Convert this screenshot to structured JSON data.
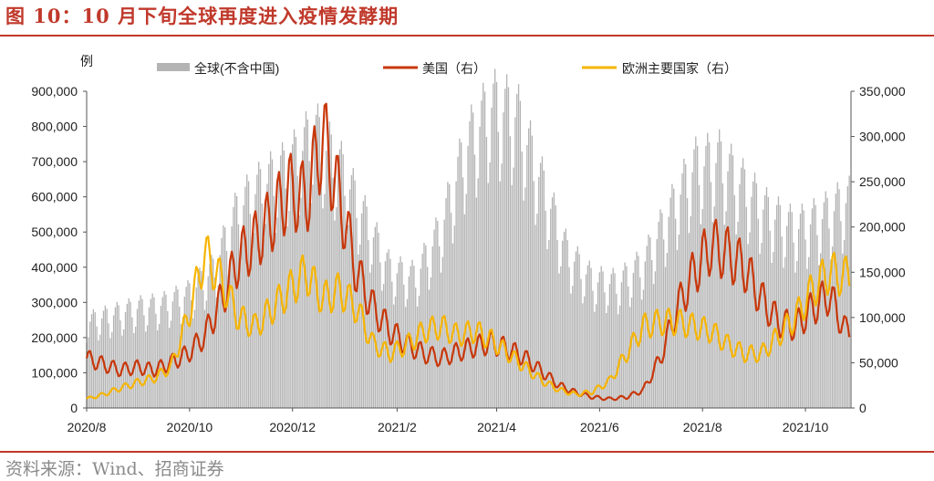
{
  "header": {
    "title": "图 10：10 月下旬全球再度进入疫情发酵期"
  },
  "footer": {
    "source": "资料来源：Wind、招商证券"
  },
  "chart_data": {
    "type": "bar",
    "left_axis_label": "例",
    "left_axis": {
      "ylim": [
        0,
        900000
      ],
      "ticks": [
        "0",
        "100,000",
        "200,000",
        "300,000",
        "400,000",
        "500,000",
        "600,000",
        "700,000",
        "800,000",
        "900,000"
      ]
    },
    "right_axis": {
      "ylim": [
        0,
        350000
      ],
      "ticks": [
        "0",
        "50,000",
        "100,000",
        "150,000",
        "200,000",
        "250,000",
        "300,000",
        "350,000"
      ]
    },
    "x_ticks": [
      "2020/8",
      "2020/10",
      "2020/12",
      "2021/2",
      "2021/4",
      "2021/6",
      "2021/8",
      "2021/10"
    ],
    "legend": {
      "position": "top",
      "entries": [
        {
          "name": "全球(不含中国)",
          "kind": "bar"
        },
        {
          "name": "美国（右）",
          "kind": "line"
        },
        {
          "name": "欧洲主要国家（右）",
          "kind": "line"
        }
      ]
    },
    "colors": {
      "global": "#b4b4b4",
      "us": "#C8370A",
      "europe": "#F7B500",
      "axis": "#555555"
    },
    "series": [
      {
        "name": "全球(不含中国)",
        "axis": "left",
        "type": "bar",
        "anchors_x": [
          0,
          15,
          30,
          45,
          60,
          75,
          90,
          105,
          120,
          135,
          150,
          165,
          180,
          195,
          210,
          225,
          240,
          255,
          270,
          285,
          300,
          315,
          330,
          345,
          360,
          375,
          390,
          405,
          420,
          435,
          450
        ],
        "anchors_y": [
          250000,
          270000,
          290000,
          300000,
          330000,
          400000,
          580000,
          650000,
          700000,
          800000,
          700000,
          550000,
          400000,
          380000,
          520000,
          760000,
          880000,
          850000,
          650000,
          450000,
          370000,
          360000,
          420000,
          560000,
          700000,
          720000,
          640000,
          560000,
          520000,
          550000,
          600000
        ]
      },
      {
        "name": "美国（右）",
        "axis": "right",
        "type": "line",
        "anchors_x": [
          0,
          10,
          20,
          30,
          40,
          50,
          60,
          70,
          80,
          90,
          100,
          110,
          120,
          130,
          140,
          150,
          160,
          170,
          180,
          190,
          200,
          210,
          220,
          230,
          240,
          250,
          260,
          270,
          280,
          290,
          300,
          310,
          320,
          330,
          340,
          350,
          360,
          370,
          380,
          390,
          400,
          410,
          420,
          430,
          440,
          450
        ],
        "anchors_y": [
          55000,
          48000,
          42000,
          45000,
          42000,
          50000,
          60000,
          80000,
          120000,
          165000,
          185000,
          210000,
          240000,
          230000,
          300000,
          230000,
          150000,
          110000,
          85000,
          70000,
          60000,
          55000,
          62000,
          68000,
          72000,
          65000,
          55000,
          40000,
          25000,
          17000,
          12000,
          10000,
          12000,
          20000,
          55000,
          110000,
          150000,
          180000,
          170000,
          155000,
          120000,
          95000,
          90000,
          110000,
          125000,
          85000
        ]
      },
      {
        "name": "欧洲主要国家（右）",
        "axis": "right",
        "type": "line",
        "anchors_x": [
          0,
          10,
          20,
          30,
          40,
          50,
          60,
          70,
          80,
          90,
          100,
          110,
          120,
          130,
          140,
          150,
          160,
          170,
          180,
          190,
          200,
          210,
          220,
          230,
          240,
          250,
          260,
          270,
          280,
          290,
          300,
          310,
          320,
          330,
          340,
          350,
          360,
          370,
          380,
          390,
          400,
          410,
          420,
          430,
          440,
          450
        ],
        "anchors_y": [
          10000,
          15000,
          22000,
          28000,
          33000,
          45000,
          100000,
          170000,
          140000,
          100000,
          90000,
          110000,
          130000,
          150000,
          120000,
          130000,
          110000,
          70000,
          60000,
          70000,
          85000,
          90000,
          80000,
          85000,
          75000,
          60000,
          45000,
          30000,
          20000,
          15000,
          18000,
          30000,
          60000,
          90000,
          95000,
          95000,
          90000,
          85000,
          70000,
          60000,
          60000,
          80000,
          100000,
          130000,
          150000,
          145000
        ]
      }
    ]
  }
}
